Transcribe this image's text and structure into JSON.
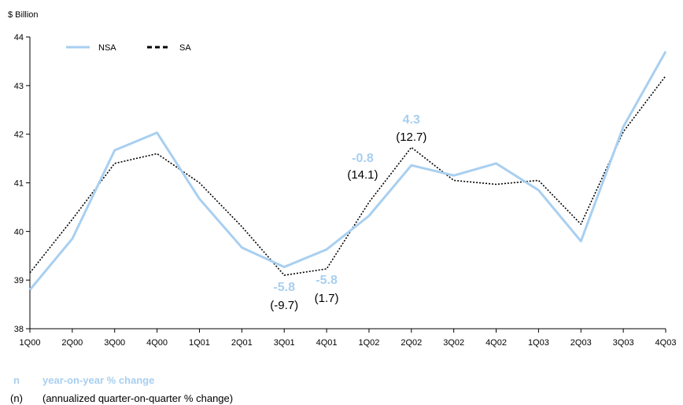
{
  "chart_data": {
    "type": "line",
    "unit_label": "$ Billion",
    "categories": [
      "1Q00",
      "2Q00",
      "3Q00",
      "4Q00",
      "1Q01",
      "2Q01",
      "3Q01",
      "4Q01",
      "1Q02",
      "2Q02",
      "3Q02",
      "4Q02",
      "1Q03",
      "2Q03",
      "3Q03",
      "4Q03"
    ],
    "ylim": [
      38,
      44
    ],
    "yticks": [
      "38",
      "39",
      "40",
      "41",
      "42",
      "43",
      "44"
    ],
    "series": [
      {
        "name": "NSA",
        "color": "#a8cff0",
        "style": "solid",
        "values": [
          38.8,
          39.85,
          41.67,
          42.03,
          40.67,
          39.67,
          39.27,
          39.63,
          40.32,
          41.36,
          41.15,
          41.4,
          40.85,
          39.8,
          42.15,
          43.7
        ]
      },
      {
        "name": "SA",
        "color": "#000000",
        "style": "dotted",
        "values": [
          39.15,
          40.25,
          41.4,
          41.6,
          41.0,
          40.1,
          39.1,
          39.23,
          40.6,
          41.73,
          41.05,
          40.97,
          41.05,
          40.15,
          42.05,
          43.2
        ]
      }
    ],
    "legend": {
      "position": "top-left"
    },
    "annotations": [
      {
        "category": "3Q01",
        "yoy": "-5.8",
        "qoq": "(-9.7)",
        "placement": "below"
      },
      {
        "category": "4Q01",
        "yoy": "-5.8",
        "qoq": "(1.7)",
        "placement": "below"
      },
      {
        "category": "1Q02",
        "yoy": "-0.8",
        "qoq": "(14.1)",
        "placement": "above"
      },
      {
        "category": "2Q02",
        "yoy": "4.3",
        "qoq": "(12.7)",
        "placement": "above"
      }
    ],
    "annotation_color": "#a8cff0"
  },
  "footnotes": {
    "yoy_symbol": "n",
    "yoy_text": "year-on-year % change",
    "qoq_symbol": "(n)",
    "qoq_text": "(annualized quarter-on-quarter % change)"
  }
}
